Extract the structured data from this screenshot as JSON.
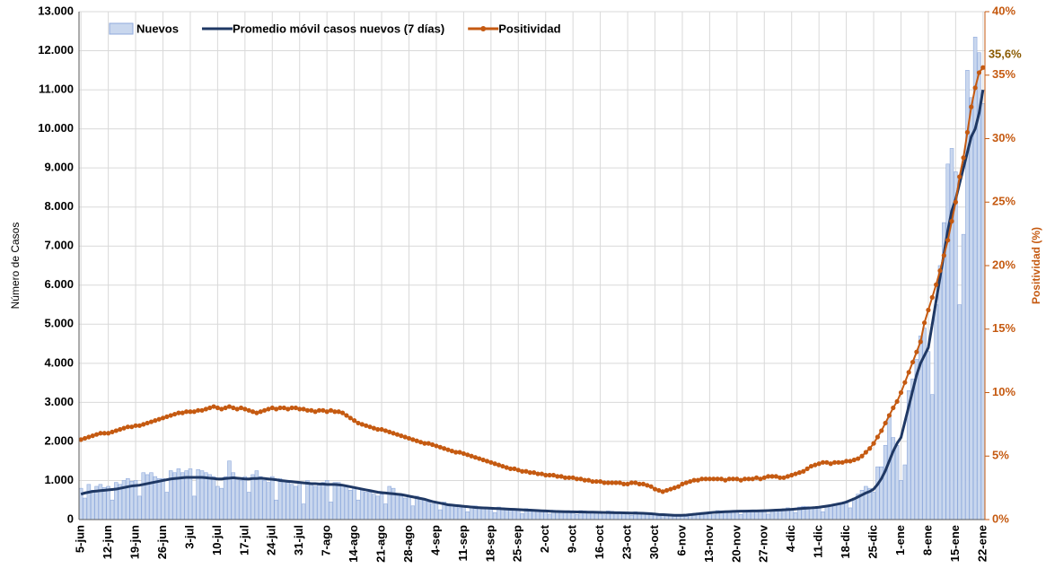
{
  "chart_data": {
    "type": "bar-line",
    "y_label": "Número de Casos",
    "y2_label": "Positividad (%)",
    "categories": [
      "5-jun",
      null,
      null,
      null,
      null,
      null,
      null,
      "12-jun",
      null,
      null,
      null,
      null,
      null,
      null,
      "19-jun",
      null,
      null,
      null,
      null,
      null,
      null,
      "26-jun",
      null,
      null,
      null,
      null,
      null,
      null,
      "3-jul",
      null,
      null,
      null,
      null,
      null,
      null,
      "10-jul",
      null,
      null,
      null,
      null,
      null,
      null,
      "17-jul",
      null,
      null,
      null,
      null,
      null,
      null,
      "24-jul",
      null,
      null,
      null,
      null,
      null,
      null,
      "31-jul",
      null,
      null,
      null,
      null,
      null,
      null,
      "7-ago",
      null,
      null,
      null,
      null,
      null,
      null,
      "14-ago",
      null,
      null,
      null,
      null,
      null,
      null,
      "21-ago",
      null,
      null,
      null,
      null,
      null,
      null,
      "28-ago",
      null,
      null,
      null,
      null,
      null,
      null,
      "4-sep",
      null,
      null,
      null,
      null,
      null,
      null,
      "11-sep",
      null,
      null,
      null,
      null,
      null,
      null,
      "18-sep",
      null,
      null,
      null,
      null,
      null,
      null,
      "25-sep",
      null,
      null,
      null,
      null,
      null,
      null,
      "2-oct",
      null,
      null,
      null,
      null,
      null,
      null,
      "9-oct",
      null,
      null,
      null,
      null,
      null,
      null,
      "16-oct",
      null,
      null,
      null,
      null,
      null,
      null,
      "23-oct",
      null,
      null,
      null,
      null,
      null,
      null,
      "30-oct",
      null,
      null,
      null,
      null,
      null,
      null,
      "6-nov",
      null,
      null,
      null,
      null,
      null,
      null,
      "13-nov",
      null,
      null,
      null,
      null,
      null,
      null,
      "20-nov",
      null,
      null,
      null,
      null,
      null,
      null,
      "27-nov",
      null,
      null,
      null,
      null,
      null,
      null,
      "4-dic",
      null,
      null,
      null,
      null,
      null,
      null,
      "11-dic",
      null,
      null,
      null,
      null,
      null,
      null,
      "18-dic",
      null,
      null,
      null,
      null,
      null,
      null,
      "25-dic",
      null,
      null,
      null,
      null,
      null,
      null,
      "1-ene",
      null,
      null,
      null,
      null,
      null,
      null,
      "8-ene",
      null,
      null,
      null,
      null,
      null,
      null,
      "15-ene",
      null,
      null,
      null,
      null,
      null,
      null,
      "22-ene"
    ],
    "series": [
      {
        "name": "Nuevos",
        "type": "bar",
        "color": "#c9d7ee",
        "values": [
          800,
          550,
          900,
          750,
          850,
          900,
          820,
          850,
          500,
          950,
          900,
          1000,
          1050,
          980,
          1000,
          600,
          1200,
          1150,
          1200,
          1100,
          1050,
          1050,
          700,
          1250,
          1200,
          1300,
          1200,
          1250,
          1300,
          600,
          1280,
          1250,
          1200,
          1150,
          1100,
          850,
          800,
          1100,
          1500,
          1200,
          1050,
          1000,
          1100,
          700,
          1150,
          1250,
          1100,
          1000,
          950,
          1100,
          500,
          1050,
          1000,
          950,
          900,
          850,
          950,
          400,
          1000,
          900,
          850,
          900,
          950,
          1000,
          450,
          950,
          950,
          900,
          850,
          750,
          800,
          500,
          750,
          700,
          700,
          650,
          600,
          650,
          400,
          850,
          800,
          650,
          600,
          550,
          600,
          350,
          600,
          550,
          500,
          450,
          400,
          450,
          250,
          450,
          400,
          350,
          350,
          300,
          350,
          200,
          350,
          350,
          300,
          300,
          280,
          300,
          180,
          320,
          300,
          280,
          270,
          260,
          270,
          150,
          280,
          260,
          250,
          240,
          220,
          230,
          140,
          240,
          230,
          220,
          210,
          200,
          220,
          130,
          230,
          220,
          210,
          200,
          190,
          200,
          120,
          220,
          210,
          200,
          190,
          180,
          190,
          110,
          200,
          180,
          170,
          160,
          150,
          140,
          90,
          150,
          140,
          130,
          120,
          110,
          120,
          80,
          150,
          160,
          170,
          180,
          190,
          200,
          120,
          230,
          220,
          210,
          200,
          210,
          230,
          130,
          240,
          230,
          220,
          220,
          230,
          220,
          140,
          250,
          260,
          270,
          280,
          300,
          280,
          180,
          320,
          340,
          330,
          320,
          310,
          320,
          200,
          360,
          380,
          400,
          420,
          430,
          450,
          300,
          550,
          650,
          750,
          850,
          800,
          700,
          1350,
          1350,
          1900,
          2700,
          2100,
          1900,
          1000,
          1400,
          3300,
          3600,
          4100,
          4700,
          4900,
          4300,
          3200,
          5500,
          6500,
          7600,
          9100,
          9500,
          8900,
          5500,
          7300,
          11500,
          10800,
          12350,
          11950,
          10650
        ]
      },
      {
        "name": "Promedio móvil casos nuevos (7 días)",
        "type": "line",
        "color": "#1f3864",
        "values": [
          650,
          680,
          700,
          720,
          730,
          740,
          750,
          760,
          770,
          780,
          800,
          820,
          840,
          860,
          870,
          880,
          900,
          920,
          940,
          960,
          980,
          1000,
          1020,
          1040,
          1050,
          1060,
          1070,
          1080,
          1080,
          1080,
          1080,
          1080,
          1070,
          1060,
          1050,
          1040,
          1040,
          1050,
          1060,
          1070,
          1060,
          1050,
          1040,
          1040,
          1050,
          1050,
          1060,
          1050,
          1040,
          1030,
          1020,
          1000,
          990,
          980,
          970,
          960,
          950,
          940,
          930,
          920,
          920,
          910,
          910,
          900,
          900,
          900,
          890,
          880,
          860,
          840,
          820,
          800,
          780,
          760,
          740,
          720,
          700,
          690,
          680,
          670,
          660,
          650,
          640,
          620,
          600,
          580,
          560,
          540,
          520,
          490,
          460,
          440,
          420,
          400,
          380,
          370,
          360,
          350,
          340,
          330,
          320,
          310,
          305,
          300,
          295,
          290,
          285,
          280,
          275,
          270,
          265,
          260,
          255,
          250,
          245,
          240,
          235,
          230,
          225,
          220,
          215,
          210,
          208,
          205,
          202,
          200,
          198,
          196,
          194,
          192,
          190,
          188,
          186,
          184,
          182,
          180,
          178,
          176,
          174,
          172,
          170,
          168,
          166,
          164,
          160,
          155,
          150,
          140,
          130,
          125,
          120,
          115,
          110,
          108,
          110,
          115,
          125,
          135,
          145,
          155,
          165,
          175,
          185,
          190,
          195,
          200,
          205,
          210,
          212,
          214,
          216,
          218,
          220,
          222,
          224,
          226,
          230,
          235,
          240,
          245,
          250,
          255,
          262,
          270,
          278,
          286,
          294,
          300,
          306,
          315,
          330,
          345,
          360,
          380,
          400,
          420,
          450,
          490,
          530,
          580,
          630,
          680,
          720,
          780,
          900,
          1050,
          1250,
          1500,
          1750,
          1950,
          2100,
          2500,
          2900,
          3300,
          3700,
          4000,
          4200,
          4400,
          5000,
          5600,
          6200,
          6800,
          7400,
          7900,
          8200,
          8600,
          9000,
          9400,
          9800,
          10000,
          10400,
          11000
        ]
      },
      {
        "name": "Positividad",
        "type": "line-dots",
        "axis": "y2",
        "color": "#c55a11",
        "values": [
          6.3,
          6.4,
          6.5,
          6.6,
          6.7,
          6.8,
          6.8,
          6.8,
          6.9,
          7.0,
          7.1,
          7.2,
          7.3,
          7.3,
          7.4,
          7.4,
          7.5,
          7.6,
          7.7,
          7.8,
          7.9,
          8.0,
          8.1,
          8.2,
          8.3,
          8.4,
          8.4,
          8.5,
          8.5,
          8.5,
          8.6,
          8.6,
          8.7,
          8.8,
          8.9,
          8.8,
          8.7,
          8.8,
          8.9,
          8.8,
          8.7,
          8.8,
          8.7,
          8.6,
          8.5,
          8.4,
          8.5,
          8.6,
          8.7,
          8.8,
          8.7,
          8.8,
          8.8,
          8.7,
          8.8,
          8.8,
          8.7,
          8.7,
          8.6,
          8.6,
          8.5,
          8.6,
          8.6,
          8.5,
          8.6,
          8.5,
          8.5,
          8.4,
          8.2,
          8.0,
          7.8,
          7.6,
          7.5,
          7.4,
          7.3,
          7.2,
          7.1,
          7.1,
          7.0,
          6.9,
          6.8,
          6.7,
          6.6,
          6.5,
          6.4,
          6.3,
          6.2,
          6.1,
          6.0,
          6.0,
          5.9,
          5.8,
          5.7,
          5.6,
          5.5,
          5.4,
          5.3,
          5.3,
          5.2,
          5.1,
          5.0,
          4.9,
          4.8,
          4.7,
          4.6,
          4.5,
          4.4,
          4.3,
          4.2,
          4.1,
          4.0,
          4.0,
          3.9,
          3.8,
          3.8,
          3.7,
          3.7,
          3.6,
          3.6,
          3.5,
          3.5,
          3.5,
          3.4,
          3.4,
          3.3,
          3.3,
          3.3,
          3.2,
          3.2,
          3.1,
          3.1,
          3.0,
          3.0,
          3.0,
          2.9,
          2.9,
          2.9,
          2.9,
          2.9,
          2.8,
          2.8,
          2.9,
          2.9,
          2.8,
          2.8,
          2.7,
          2.6,
          2.4,
          2.3,
          2.2,
          2.3,
          2.4,
          2.5,
          2.6,
          2.8,
          2.9,
          3.0,
          3.1,
          3.1,
          3.2,
          3.2,
          3.2,
          3.2,
          3.2,
          3.2,
          3.1,
          3.2,
          3.2,
          3.2,
          3.1,
          3.2,
          3.2,
          3.2,
          3.3,
          3.2,
          3.3,
          3.4,
          3.4,
          3.4,
          3.3,
          3.3,
          3.4,
          3.5,
          3.6,
          3.7,
          3.8,
          4.0,
          4.2,
          4.3,
          4.4,
          4.5,
          4.5,
          4.4,
          4.5,
          4.5,
          4.5,
          4.6,
          4.6,
          4.7,
          4.8,
          5.0,
          5.3,
          5.6,
          6.0,
          6.5,
          7.0,
          7.6,
          8.2,
          8.8,
          9.3,
          10.0,
          10.8,
          11.6,
          12.4,
          13.2,
          14.0,
          15.5,
          16.5,
          17.5,
          18.5,
          19.6,
          20.8,
          22.0,
          23.5,
          25.0,
          27.0,
          28.5,
          30.5,
          32.5,
          34.0,
          35.2,
          35.6
        ]
      }
    ],
    "annotations": [
      {
        "text": "35,6%",
        "x": "22-ene",
        "y": 35.6
      }
    ],
    "ylim": [
      0,
      13000
    ],
    "yticks": [
      0,
      {
        "value": 1000,
        "label": "1.000"
      },
      {
        "value": 2000,
        "label": "2.000"
      },
      {
        "value": 3000,
        "label": "3.000"
      },
      {
        "value": 4000,
        "label": "4.000"
      },
      {
        "value": 5000,
        "label": "5.000"
      },
      {
        "value": 6000,
        "label": "6.000"
      },
      {
        "value": 7000,
        "label": "7.000"
      },
      {
        "value": 8000,
        "label": "8.000"
      },
      {
        "value": 9000,
        "label": "9.000"
      },
      {
        "value": 10000,
        "label": "10.000"
      },
      {
        "value": 11000,
        "label": "11.000"
      },
      {
        "value": 12000,
        "label": "12.000"
      },
      {
        "value": 13000,
        "label": "13.000"
      }
    ],
    "y2lim": [
      0,
      40
    ],
    "y2ticks": [
      {
        "value": 0,
        "label": "0%"
      },
      {
        "value": 5,
        "label": "5%"
      },
      {
        "value": 10,
        "label": "10%"
      },
      {
        "value": 15,
        "label": "15%"
      },
      {
        "value": 20,
        "label": "20%"
      },
      {
        "value": 25,
        "label": "25%"
      },
      {
        "value": 30,
        "label": "30%"
      },
      {
        "value": 35,
        "label": "35%"
      },
      {
        "value": 40,
        "label": "40%"
      }
    ],
    "grid": true
  }
}
